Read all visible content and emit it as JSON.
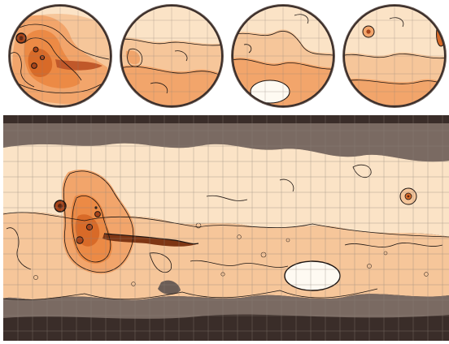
{
  "figure": {
    "globes": [
      {
        "view": "western-hemisphere-tharsis"
      },
      {
        "view": "arabia-terra"
      },
      {
        "view": "hellas-basin"
      },
      {
        "view": "elysium"
      }
    ],
    "map": {
      "projection": "equirectangular",
      "graticule": true
    },
    "colors": {
      "pale": "#fbe3c6",
      "light": "#f6c69a",
      "mid": "#f2a56b",
      "orange": "#ec8a45",
      "deep": "#d86a28",
      "peak": "#a8441a",
      "polarGrey": "#7a6a62",
      "darkPolar": "#3a2d29",
      "contour": "#1c1411",
      "grid": "#8d8178"
    }
  }
}
